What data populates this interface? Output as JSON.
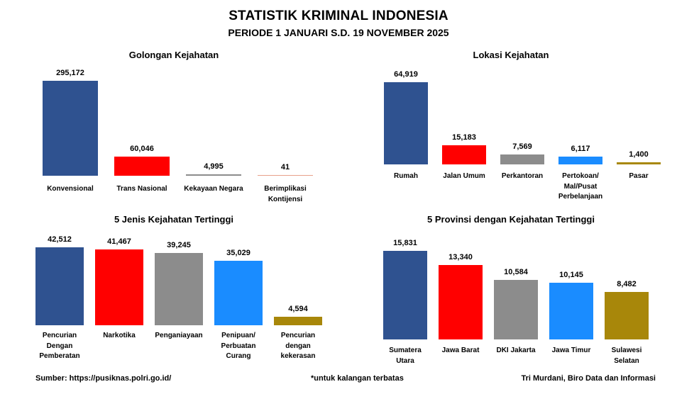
{
  "header": {
    "title": "STATISTIK KRIMINAL INDONESIA",
    "subtitle": "PERIODE 1 JANUARI S.D. 19 NOVEMBER 2025"
  },
  "colors": {
    "navy": "#2f5290",
    "red": "#ff0000",
    "gray": "#8c8c8c",
    "blue": "#1a8cff",
    "olive": "#a8870a",
    "salmon": "#e8a08a"
  },
  "chart_data": [
    {
      "type": "bar",
      "title": "Golongan Kejahatan",
      "categories": [
        "Konvensional",
        "Trans Nasional",
        "Kekayaan Negara",
        "Berimplikasi\nKontijensi"
      ],
      "values": [
        295172,
        60046,
        4995,
        41
      ],
      "value_labels": [
        "295,172",
        "60,046",
        "4,995",
        "41"
      ],
      "colors": [
        "#2f5290",
        "#ff0000",
        "#8c8c8c",
        "#e8a08a"
      ],
      "xlabel": "",
      "ylabel": "",
      "ylim": [
        0,
        295172
      ]
    },
    {
      "type": "bar",
      "title": "Lokasi Kejahatan",
      "categories": [
        "Rumah",
        "Jalan Umum",
        "Perkantoran",
        "Pertokoan/\nMal/Pusat\nPerbelanjaan",
        "Pasar"
      ],
      "values": [
        64919,
        15183,
        7569,
        6117,
        1400
      ],
      "value_labels": [
        "64,919",
        "15,183",
        "7,569",
        "6,117",
        "1,400"
      ],
      "colors": [
        "#2f5290",
        "#ff0000",
        "#8c8c8c",
        "#1a8cff",
        "#a8870a"
      ],
      "xlabel": "",
      "ylabel": "",
      "ylim": [
        0,
        64919
      ]
    },
    {
      "type": "bar",
      "title": "5 Jenis Kejahatan Tertinggi",
      "categories": [
        "Pencurian\nDengan\nPemberatan",
        "Narkotika",
        "Penganiayaan",
        "Penipuan/\nPerbuatan\nCurang",
        "Pencurian\ndengan\nkekerasan"
      ],
      "values": [
        42512,
        41467,
        39245,
        35029,
        4594
      ],
      "value_labels": [
        "42,512",
        "41,467",
        "39,245",
        "35,029",
        "4,594"
      ],
      "colors": [
        "#2f5290",
        "#ff0000",
        "#8c8c8c",
        "#1a8cff",
        "#a8870a"
      ],
      "xlabel": "",
      "ylabel": "",
      "ylim": [
        0,
        42512
      ]
    },
    {
      "type": "bar",
      "title": "5 Provinsi dengan Kejahatan Tertinggi",
      "categories": [
        "Sumatera\nUtara",
        "Jawa Barat",
        "DKI Jakarta",
        "Jawa Timur",
        "Sulawesi\nSelatan"
      ],
      "values": [
        15831,
        13340,
        10584,
        10145,
        8482
      ],
      "value_labels": [
        "15,831",
        "13,340",
        "10,584",
        "10,145",
        "8,482"
      ],
      "colors": [
        "#2f5290",
        "#ff0000",
        "#8c8c8c",
        "#1a8cff",
        "#a8870a"
      ],
      "xlabel": "",
      "ylabel": "",
      "ylim": [
        0,
        15831
      ]
    }
  ],
  "footer": {
    "source": "Sumber: https://pusiknas.polri.go.id/",
    "note": "*untuk kalangan terbatas",
    "author": "Tri Murdani, Biro Data dan Informasi"
  }
}
